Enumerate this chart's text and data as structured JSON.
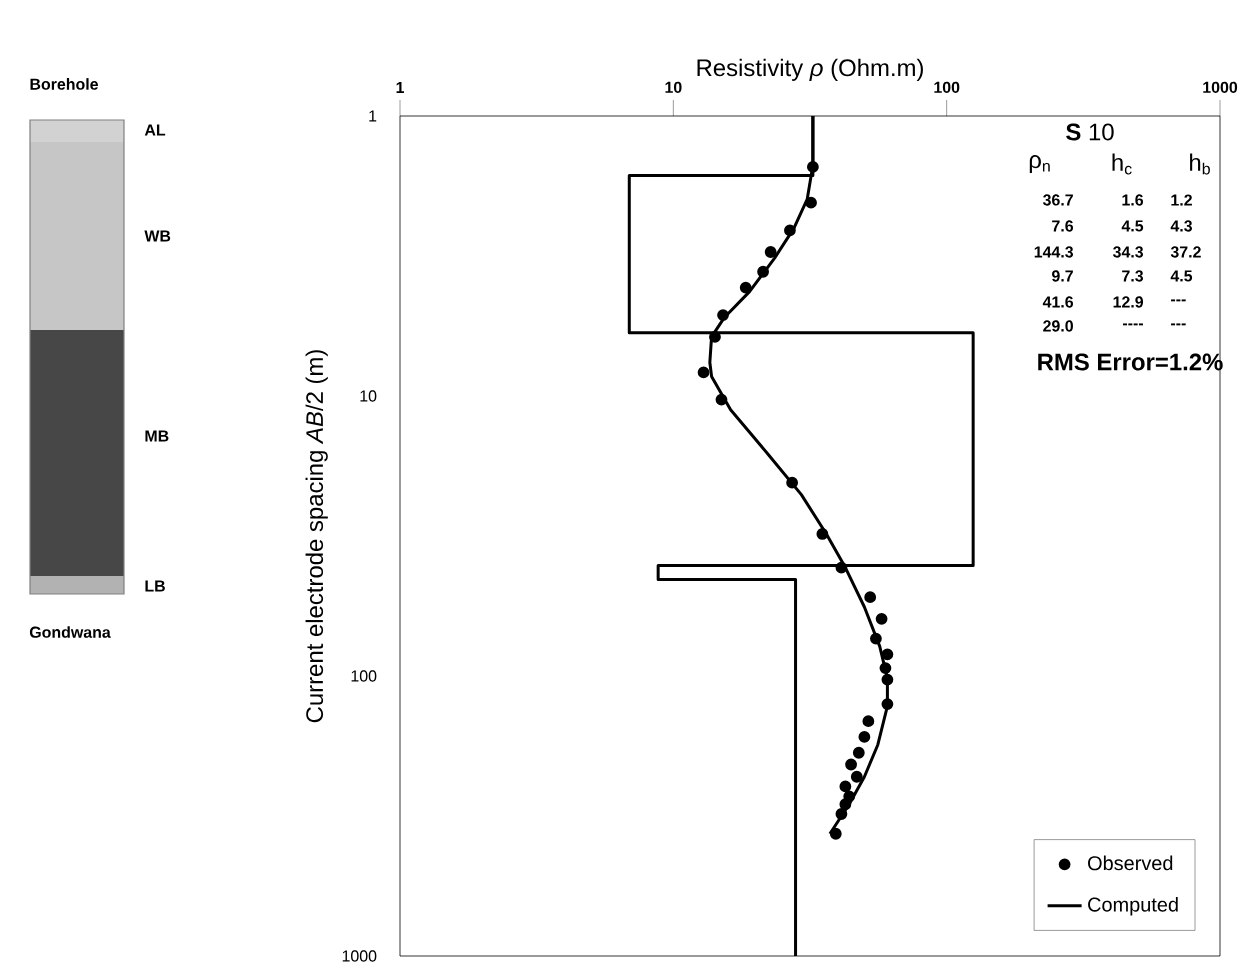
{
  "chart_data": {
    "type": "line",
    "xlabel": "Resistivity *ρ* (Ohm.m)",
    "ylabel": "Current electrode spacing *AB*/2 (m)",
    "log": "xy",
    "xlim": [
      1,
      1000
    ],
    "ylim": [
      1000,
      1
    ],
    "xticks": [
      1,
      10,
      100,
      1000
    ],
    "yticks": [
      1,
      10,
      100,
      1000
    ],
    "legend": "bottom right",
    "series": [
      {
        "name": "Observed",
        "type": "scatter",
        "marker": "circle",
        "color": "#000000",
        "x": [
          32.4,
          31.9,
          26.7,
          22.7,
          21.3,
          18.4,
          15.2,
          14.2,
          12.9,
          15.0,
          27.2,
          35.1,
          41.2,
          52.5,
          57.8,
          55.1,
          60.7,
          59.7,
          60.7,
          60.7,
          51.7,
          50.0,
          47.7,
          44.7,
          46.9,
          42.6,
          44.0,
          42.6,
          41.2,
          39.3
        ],
        "values": [
          1.52,
          2.04,
          2.56,
          3.06,
          3.6,
          4.1,
          5.14,
          6.15,
          8.23,
          10.3,
          20.4,
          31.1,
          41.0,
          52.3,
          62.5,
          73.5,
          83.7,
          93.7,
          103,
          126,
          145,
          165,
          188,
          207,
          229,
          248,
          269,
          287,
          311,
          366
        ]
      },
      {
        "name": "Computed",
        "color": "#000000",
        "x": [
          32.4,
          32.4,
          30.9,
          27.6,
          23.5,
          19.0,
          15.4,
          13.8,
          13.6,
          13.8,
          16.2,
          22.4,
          29.4,
          36.3,
          42.6,
          50.0,
          56.9,
          60.7,
          60.7,
          56.0,
          50.0,
          44.0,
          37.4
        ],
        "values": [
          1,
          1.5,
          1.98,
          2.52,
          3.21,
          4.24,
          5.23,
          6.15,
          7.59,
          8.51,
          11.2,
          16.3,
          22.5,
          31.1,
          41.0,
          56.7,
          78.4,
          102,
          128,
          176,
          229,
          287,
          366
        ]
      },
      {
        "color": "#000000",
        "x": [
          32.4,
          32.4,
          6.9,
          6.9,
          125,
          125,
          8.8,
          8.8,
          28,
          28
        ],
        "values": [
          1,
          1.63,
          1.63,
          5.95,
          5.95,
          40.3,
          40.3,
          45.2,
          45.2,
          1000
        ]
      }
    ],
    "annotations": [
      "**S** 10",
      "ρ$_{n}$",
      "h$_{c}$",
      "h$_{b}$",
      "36.7",
      "1.6",
      "1.2",
      "7.6",
      "4.5",
      "4.3",
      "144.3",
      "34.3",
      "37.2",
      "9.7",
      "7.3",
      "4.5",
      "41.6",
      "12.9",
      "---",
      "29.0",
      "----",
      "---",
      "RMS Error=1.2%",
      "Borehole",
      "AL",
      "WB",
      "MB",
      "LB",
      "Gondwana"
    ]
  }
}
